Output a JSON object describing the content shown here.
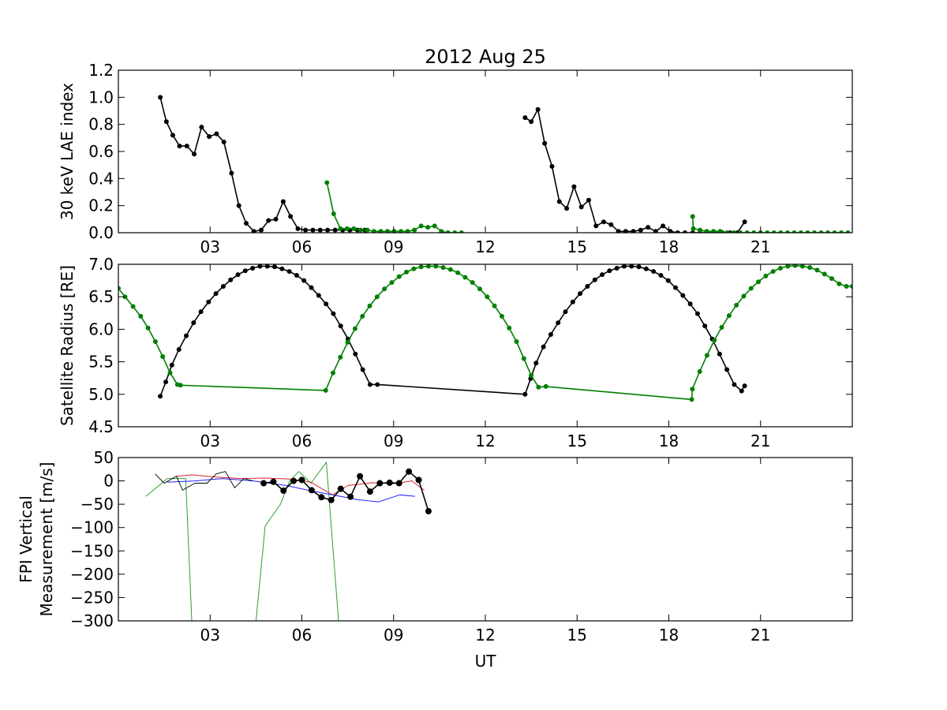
{
  "figure_title": "2012 Aug 25",
  "chart_data": [
    {
      "type": "line",
      "id": "lae",
      "title": "2012 Aug 25",
      "ylabel": "30 keV LAE index",
      "xlabel": "",
      "xlim": [
        0,
        24
      ],
      "ylim": [
        0,
        1.2
      ],
      "yticks": [
        0.0,
        0.2,
        0.4,
        0.6,
        0.8,
        1.0,
        1.2
      ],
      "yticklabels": [
        "0.0",
        "0.2",
        "0.4",
        "0.6",
        "0.8",
        "1.0",
        "1.2"
      ],
      "xticks": [
        3,
        6,
        9,
        12,
        15,
        18,
        21
      ],
      "xticklabels": [
        "03",
        "06",
        "09",
        "12",
        "15",
        "18",
        "21"
      ],
      "series": [
        {
          "color": "#000000",
          "marker": "dot",
          "x": [
            1.37,
            1.57,
            1.78,
            2.0,
            2.24,
            2.48,
            2.72,
            2.97,
            3.21,
            3.45,
            3.7,
            3.94,
            4.18,
            4.43,
            4.67,
            4.91,
            5.15,
            5.39,
            5.63,
            5.87,
            6.12,
            6.36,
            6.6,
            6.84,
            7.09,
            7.33,
            7.57,
            7.82,
            8.06,
            null,
            13.3,
            13.5,
            13.72,
            13.94,
            14.18,
            14.42,
            14.66,
            14.9,
            15.14,
            15.38,
            15.62,
            15.87,
            16.11,
            16.35,
            16.59,
            16.84,
            17.08,
            17.32,
            17.57,
            17.81,
            18.05,
            18.29,
            18.53,
            18.78,
            19.02,
            19.27,
            19.51,
            19.75,
            20.0,
            20.24,
            20.48
          ],
          "y": [
            1.0,
            0.82,
            0.72,
            0.64,
            0.64,
            0.58,
            0.78,
            0.71,
            0.73,
            0.67,
            0.44,
            0.2,
            0.07,
            0.01,
            0.02,
            0.09,
            0.1,
            0.23,
            0.12,
            0.03,
            0.02,
            0.02,
            0.02,
            0.02,
            0.02,
            0.02,
            0.02,
            0.02,
            0.02,
            null,
            0.85,
            0.82,
            0.91,
            0.66,
            0.49,
            0.23,
            0.18,
            0.34,
            0.19,
            0.24,
            0.05,
            0.08,
            0.06,
            0.01,
            0.01,
            0.01,
            0.02,
            0.04,
            0.01,
            0.05,
            0.01,
            0.0,
            0.0,
            0.0,
            0.0,
            0.0,
            0.0,
            0.0,
            0.0,
            0.0,
            0.08
          ]
        },
        {
          "color": "#008000",
          "marker": "dot",
          "x": [
            6.82,
            7.04,
            7.26,
            7.48,
            7.7,
            7.92,
            8.14,
            8.36,
            8.58,
            8.8,
            9.02,
            9.24,
            9.46,
            9.68,
            9.9,
            10.12,
            10.34,
            10.56,
            10.78,
            11.0,
            11.22,
            null,
            18.78,
            18.8,
            19.02,
            19.24,
            19.46,
            19.68,
            19.9,
            20.12,
            20.34,
            20.56,
            20.78,
            21.0,
            21.22,
            21.44,
            21.66,
            21.88,
            22.1,
            22.32,
            22.54,
            22.76,
            22.98,
            23.2,
            23.42,
            23.64,
            23.86
          ],
          "y": [
            0.37,
            0.14,
            0.03,
            0.03,
            0.03,
            0.02,
            0.02,
            0.01,
            0.01,
            0.01,
            0.01,
            0.01,
            0.01,
            0.02,
            0.05,
            0.04,
            0.05,
            0.01,
            0.0,
            0.0,
            0.0,
            null,
            0.12,
            0.03,
            0.02,
            0.01,
            0.01,
            0.01,
            0.0,
            0.0,
            0.0,
            0.0,
            0.0,
            0.0,
            0.0,
            0.0,
            0.0,
            0.0,
            0.0,
            0.0,
            0.0,
            0.0,
            0.0,
            0.0,
            0.0,
            0.0,
            0.0
          ]
        }
      ]
    },
    {
      "type": "line",
      "id": "radius",
      "title": "",
      "ylabel": "Satellite Radius [RE]",
      "xlabel": "",
      "xlim": [
        0,
        24
      ],
      "ylim": [
        4.5,
        7.0
      ],
      "yticks": [
        4.5,
        5.0,
        5.5,
        6.0,
        6.5,
        7.0
      ],
      "yticklabels": [
        "4.5",
        "5.0",
        "5.5",
        "6.0",
        "6.5",
        "7.0"
      ],
      "xticks": [
        3,
        6,
        9,
        12,
        15,
        18,
        21
      ],
      "xticklabels": [
        "03",
        "06",
        "09",
        "12",
        "15",
        "18",
        "21"
      ],
      "series": [
        {
          "color": "#000000",
          "marker": "dot",
          "x": [
            1.37,
            1.55,
            1.75,
            1.98,
            2.22,
            2.46,
            2.7,
            2.95,
            3.19,
            3.43,
            3.67,
            3.91,
            4.15,
            4.39,
            4.63,
            4.87,
            5.11,
            5.35,
            5.59,
            5.83,
            6.07,
            6.31,
            6.55,
            6.79,
            7.03,
            7.27,
            7.51,
            7.75,
            7.99,
            8.23,
            8.47,
            13.3,
            13.48,
            13.66,
            13.9,
            14.14,
            14.38,
            14.62,
            14.86,
            15.1,
            15.34,
            15.58,
            15.82,
            16.06,
            16.3,
            16.54,
            16.78,
            17.02,
            17.26,
            17.5,
            17.74,
            17.98,
            18.22,
            18.46,
            18.7,
            18.94,
            19.18,
            19.42,
            19.66,
            19.9,
            20.14,
            20.38,
            20.48
          ],
          "y": [
            4.97,
            5.19,
            5.45,
            5.69,
            5.9,
            6.1,
            6.27,
            6.42,
            6.55,
            6.66,
            6.76,
            6.84,
            6.9,
            6.94,
            6.97,
            6.97,
            6.96,
            6.93,
            6.89,
            6.83,
            6.75,
            6.64,
            6.52,
            6.39,
            6.24,
            6.05,
            5.85,
            5.62,
            5.38,
            5.15,
            5.15,
            5.0,
            5.24,
            5.48,
            5.73,
            5.92,
            6.1,
            6.27,
            6.42,
            6.55,
            6.66,
            6.76,
            6.84,
            6.9,
            6.94,
            6.97,
            6.97,
            6.96,
            6.93,
            6.89,
            6.83,
            6.75,
            6.64,
            6.52,
            6.39,
            6.24,
            6.05,
            5.85,
            5.62,
            5.38,
            5.15,
            5.05,
            5.13
          ]
        },
        {
          "color": "#008000",
          "marker": "dot",
          "x": [
            0.0,
            0.22,
            0.48,
            0.73,
            0.97,
            1.21,
            1.45,
            1.69,
            1.93,
            2.03,
            6.78,
            7.02,
            7.26,
            7.5,
            7.74,
            7.98,
            8.22,
            8.46,
            8.7,
            8.94,
            9.18,
            9.42,
            9.66,
            9.9,
            10.14,
            10.38,
            10.62,
            10.86,
            11.1,
            11.34,
            11.58,
            11.82,
            12.06,
            12.3,
            12.54,
            12.78,
            13.02,
            13.26,
            13.5,
            13.74,
            13.98,
            18.75,
            18.77,
            19.01,
            19.25,
            19.49,
            19.73,
            19.97,
            20.21,
            20.45,
            20.69,
            20.93,
            21.17,
            21.41,
            21.65,
            21.89,
            22.13,
            22.37,
            22.61,
            22.85,
            23.09,
            23.33,
            23.57,
            23.81,
            24.0
          ],
          "y": [
            6.63,
            6.5,
            6.35,
            6.2,
            6.02,
            5.81,
            5.58,
            5.33,
            5.15,
            5.14,
            5.06,
            5.33,
            5.57,
            5.8,
            6.01,
            6.2,
            6.36,
            6.5,
            6.62,
            6.72,
            6.81,
            6.88,
            6.93,
            6.96,
            6.97,
            6.97,
            6.95,
            6.92,
            6.87,
            6.8,
            6.72,
            6.62,
            6.5,
            6.36,
            6.2,
            6.02,
            5.81,
            5.55,
            5.29,
            5.11,
            5.12,
            4.92,
            5.08,
            5.35,
            5.6,
            5.83,
            6.03,
            6.21,
            6.37,
            6.51,
            6.63,
            6.73,
            6.82,
            6.89,
            6.94,
            6.97,
            6.98,
            6.97,
            6.95,
            6.91,
            6.85,
            6.78,
            6.7,
            6.66,
            6.66
          ]
        }
      ]
    },
    {
      "type": "line",
      "id": "fpi",
      "title": "",
      "ylabel": [
        "FPI Vertical",
        "Measurement [m/s]"
      ],
      "xlabel": "UT",
      "xlim": [
        0,
        24
      ],
      "ylim": [
        -300,
        50
      ],
      "yticks": [
        50,
        0,
        -50,
        -100,
        -150,
        -200,
        -250,
        -300
      ],
      "yticklabels": [
        "50",
        "0",
        "−50",
        "−100",
        "−150",
        "−200",
        "−250",
        "−300"
      ],
      "xticks": [
        3,
        6,
        9,
        12,
        15,
        18,
        21
      ],
      "xticklabels": [
        "03",
        "06",
        "09",
        "12",
        "15",
        "18",
        "21"
      ],
      "series": [
        {
          "color": "#2ca02c",
          "marker": "none",
          "x": [
            0.9,
            1.6,
            2.2,
            2.4,
            2.6,
            4.5,
            4.8,
            5.3,
            5.6,
            5.9,
            6.3,
            6.8,
            7.2
          ],
          "y": [
            -33,
            5,
            5,
            -300,
            -400,
            -300,
            -97,
            -50,
            0,
            20,
            -5,
            40,
            -300
          ]
        },
        {
          "color": "#d62728",
          "marker": "none",
          "x": [
            1.9,
            2.4,
            3.2,
            4.0,
            4.8,
            5.6,
            6.3,
            7.0,
            7.5,
            8.3,
            9.0,
            9.6,
            10.0
          ],
          "y": [
            10,
            13,
            8,
            5,
            6,
            4,
            -3,
            -30,
            -10,
            -4,
            -6,
            0,
            -20
          ]
        },
        {
          "color": "#1f1fff",
          "marker": "none",
          "x": [
            1.6,
            2.5,
            3.4,
            4.4,
            5.5,
            6.2,
            7.0,
            7.8,
            8.5,
            9.2,
            9.7
          ],
          "y": [
            -3,
            0,
            5,
            0,
            -10,
            -20,
            -30,
            -40,
            -45,
            -30,
            -33
          ]
        },
        {
          "color": "#000000",
          "marker": "none",
          "thin": true,
          "x": [
            1.2,
            1.5,
            1.9,
            2.1,
            2.5,
            2.9,
            3.2,
            3.5,
            3.8,
            4.1,
            4.4
          ],
          "y": [
            15,
            -5,
            10,
            -20,
            -5,
            -5,
            15,
            20,
            -15,
            5,
            0
          ]
        },
        {
          "color": "#000000",
          "marker": "dot",
          "x": [
            4.75,
            5.07,
            5.4,
            5.73,
            6.0,
            6.32,
            6.64,
            6.96,
            7.27,
            7.59,
            7.9,
            8.23,
            8.55,
            8.87,
            9.18,
            9.5,
            9.82,
            10.14
          ],
          "y": [
            -5,
            -2,
            -21,
            0,
            2,
            -20,
            -35,
            -41,
            -17,
            -34,
            10,
            -23,
            -5,
            -4,
            -5,
            20,
            2,
            -65
          ]
        }
      ]
    }
  ]
}
